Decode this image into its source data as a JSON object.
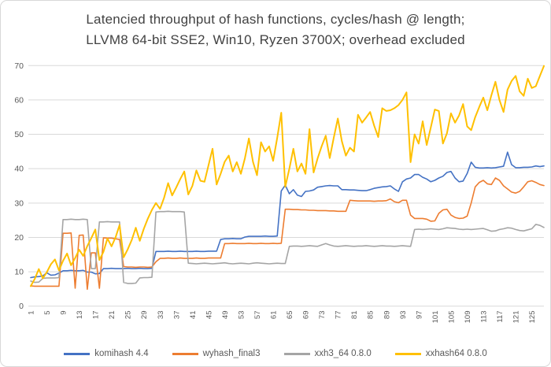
{
  "title": {
    "line1": "Latencied throughput of hash functions, cycles/hash @ length;",
    "line2": "LLVM8 64-bit SSE2, Win10, Ryzen 3700X; overhead excluded"
  },
  "colors": {
    "background": "#FFFFFF",
    "frame_border": "#D8D8D8",
    "gridline": "#D9D9D9",
    "title_text": "#424242",
    "axis_text": "#595959",
    "series_blue": "#4472C4",
    "series_orange": "#ED7D31",
    "series_gray": "#A5A5A5",
    "series_yellow": "#FFC000"
  },
  "chart_data": {
    "type": "line",
    "title": "Latencied throughput of hash functions, cycles/hash @ length; LLVM8 64-bit SSE2, Win10, Ryzen 3700X; overhead excluded",
    "xlabel": "",
    "ylabel": "",
    "x_start": 1,
    "x_step": 1,
    "n_points": 128,
    "ylim": [
      0,
      70
    ],
    "y_ticks": [
      0,
      10,
      20,
      30,
      40,
      50,
      60,
      70
    ],
    "x_tick_labels": [
      "1",
      "5",
      "9",
      "13",
      "17",
      "21",
      "25",
      "29",
      "33",
      "37",
      "41",
      "45",
      "49",
      "53",
      "57",
      "61",
      "65",
      "69",
      "73",
      "77",
      "81",
      "85",
      "89",
      "93",
      "97",
      "101",
      "105",
      "109",
      "113",
      "117",
      "121",
      "125"
    ],
    "grid": true,
    "legend_position": "bottom",
    "series": [
      {
        "name": "komihash 4.4",
        "color": "#4472C4",
        "stroke_width": 1.6,
        "values": [
          8.3,
          8.5,
          8.6,
          8.8,
          9.7,
          9.0,
          9.1,
          9.6,
          10.3,
          10.3,
          10.4,
          10.3,
          10.3,
          10.4,
          9.9,
          9.9,
          9.4,
          9.5,
          10.9,
          10.9,
          11.0,
          10.9,
          10.9,
          10.9,
          11.0,
          10.9,
          10.9,
          11.0,
          10.9,
          10.9,
          11.0,
          15.9,
          15.9,
          15.9,
          16.0,
          15.9,
          15.9,
          16.0,
          15.9,
          15.9,
          15.9,
          16.0,
          15.9,
          15.9,
          16.0,
          16.0,
          16.0,
          19.4,
          19.6,
          19.6,
          19.7,
          19.6,
          19.6,
          20.1,
          20.3,
          20.3,
          20.3,
          20.3,
          20.4,
          20.3,
          20.3,
          20.4,
          33.5,
          35.2,
          32.7,
          33.9,
          32.3,
          31.9,
          33.4,
          33.5,
          33.8,
          34.6,
          34.8,
          35.0,
          35.1,
          35.0,
          35.0,
          33.9,
          33.9,
          33.8,
          33.8,
          33.7,
          33.6,
          33.6,
          33.9,
          34.3,
          34.5,
          34.7,
          34.8,
          35.0,
          34.1,
          33.4,
          36.2,
          37.0,
          37.3,
          38.3,
          38.3,
          37.5,
          37.0,
          36.2,
          36.6,
          37.3,
          37.8,
          38.9,
          39.2,
          37.3,
          36.2,
          36.4,
          38.6,
          41.9,
          40.4,
          40.2,
          40.2,
          40.3,
          40.2,
          40.3,
          40.5,
          40.7,
          44.8,
          41.2,
          40.3,
          40.3,
          40.4,
          40.4,
          40.5,
          40.8,
          40.6,
          40.8
        ]
      },
      {
        "name": "wyhash_final3",
        "color": "#ED7D31",
        "stroke_width": 1.6,
        "values": [
          5.9,
          5.8,
          5.8,
          5.8,
          5.8,
          5.8,
          5.8,
          5.8,
          21.2,
          21.2,
          21.3,
          5.2,
          20.6,
          20.7,
          4.9,
          15.5,
          15.5,
          5.2,
          19.9,
          19.8,
          19.8,
          19.6,
          19.4,
          11.5,
          11.4,
          11.4,
          11.3,
          11.4,
          11.4,
          11.3,
          11.4,
          12.9,
          13.9,
          13.9,
          14.0,
          13.9,
          13.9,
          14.0,
          13.9,
          13.9,
          13.9,
          14.0,
          13.9,
          13.9,
          14.0,
          14.0,
          14.0,
          14.0,
          18.2,
          18.2,
          18.3,
          18.2,
          18.2,
          18.2,
          18.3,
          18.2,
          18.2,
          18.3,
          18.2,
          18.2,
          18.3,
          18.2,
          18.3,
          28.2,
          28.2,
          28.1,
          28.1,
          28.0,
          28.0,
          27.9,
          27.9,
          27.8,
          27.8,
          27.8,
          27.7,
          27.7,
          27.6,
          27.6,
          27.6,
          30.8,
          30.7,
          30.6,
          30.6,
          30.6,
          30.6,
          30.5,
          30.6,
          30.6,
          30.7,
          31.2,
          30.4,
          30.1,
          30.8,
          30.8,
          26.5,
          25.5,
          25.5,
          25.5,
          25.3,
          24.7,
          24.8,
          27.0,
          28.0,
          28.2,
          26.5,
          25.8,
          25.5,
          25.6,
          26.2,
          30.0,
          34.7,
          36.0,
          36.6,
          35.6,
          35.4,
          37.3,
          36.6,
          35.0,
          34.1,
          33.2,
          32.9,
          33.4,
          34.7,
          36.2,
          36.5,
          36.0,
          35.4,
          35.1
        ]
      },
      {
        "name": "xxh3_64 0.8.0",
        "color": "#A5A5A5",
        "stroke_width": 1.6,
        "values": [
          7.3,
          6.9,
          7.0,
          8.1,
          8.2,
          8.2,
          8.2,
          8.3,
          25.2,
          25.2,
          25.3,
          25.2,
          25.2,
          25.3,
          25.2,
          10.9,
          10.9,
          24.5,
          24.5,
          24.6,
          24.5,
          24.5,
          24.5,
          6.9,
          6.6,
          6.6,
          6.7,
          8.2,
          8.3,
          8.3,
          8.4,
          27.4,
          27.5,
          27.5,
          27.6,
          27.5,
          27.5,
          27.5,
          27.4,
          12.5,
          12.4,
          12.3,
          12.4,
          12.5,
          12.4,
          12.3,
          12.4,
          12.5,
          12.6,
          12.4,
          12.3,
          12.4,
          12.5,
          12.4,
          12.3,
          12.5,
          12.6,
          12.5,
          12.4,
          12.3,
          12.4,
          12.5,
          12.4,
          12.4,
          17.4,
          17.5,
          17.5,
          17.4,
          17.5,
          17.6,
          17.5,
          17.4,
          17.8,
          18.2,
          17.8,
          17.5,
          17.4,
          17.5,
          17.6,
          17.5,
          17.4,
          17.5,
          17.5,
          17.6,
          17.5,
          17.4,
          17.5,
          17.6,
          17.5,
          17.5,
          17.4,
          17.5,
          17.6,
          17.5,
          17.4,
          22.3,
          22.4,
          22.3,
          22.4,
          22.5,
          22.4,
          22.3,
          22.5,
          22.8,
          22.7,
          22.6,
          22.4,
          22.3,
          22.4,
          22.3,
          22.4,
          22.5,
          22.6,
          22.2,
          21.8,
          21.9,
          22.3,
          22.5,
          22.8,
          22.7,
          22.3,
          22.0,
          21.9,
          22.2,
          22.5,
          23.8,
          23.5,
          22.9
        ]
      },
      {
        "name": "xxhash64 0.8.0",
        "color": "#FFC000",
        "stroke_width": 2,
        "values": [
          5.8,
          7.9,
          10.8,
          8.1,
          9.9,
          12.2,
          13.6,
          10.4,
          13.2,
          15.3,
          11.9,
          14.0,
          16.4,
          14.6,
          17.5,
          19.8,
          22.3,
          13.4,
          15.8,
          19.7,
          17.4,
          20.0,
          23.6,
          14.2,
          16.5,
          19.2,
          22.8,
          19.0,
          22.5,
          25.5,
          28.0,
          30.0,
          28.3,
          31.5,
          35.8,
          32.2,
          34.5,
          37.0,
          39.2,
          32.5,
          35.0,
          39.5,
          36.5,
          36.2,
          41.0,
          45.8,
          35.4,
          38.5,
          42.0,
          43.8,
          39.2,
          41.9,
          38.5,
          43.0,
          48.8,
          42.0,
          38.1,
          47.7,
          45.0,
          46.5,
          42.3,
          49.0,
          56.3,
          34.7,
          40.0,
          45.8,
          39.2,
          41.5,
          38.5,
          51.5,
          38.9,
          43.0,
          46.5,
          49.6,
          43.1,
          49.0,
          54.6,
          48.0,
          43.8,
          46.1,
          45.0,
          55.7,
          53.4,
          54.9,
          56.5,
          52.5,
          49.2,
          57.6,
          56.8,
          57.0,
          57.6,
          58.5,
          60.0,
          62.2,
          41.9,
          50.0,
          47.3,
          53.8,
          46.9,
          52.0,
          57.2,
          56.8,
          47.3,
          50.3,
          56.1,
          53.4,
          55.5,
          58.8,
          52.3,
          51.2,
          55.0,
          58.0,
          60.7,
          57.0,
          61.4,
          65.3,
          60.0,
          56.5,
          63.0,
          65.5,
          67.0,
          62.5,
          61.2,
          66.2,
          63.5,
          64.0,
          67.0,
          69.9
        ]
      }
    ]
  }
}
